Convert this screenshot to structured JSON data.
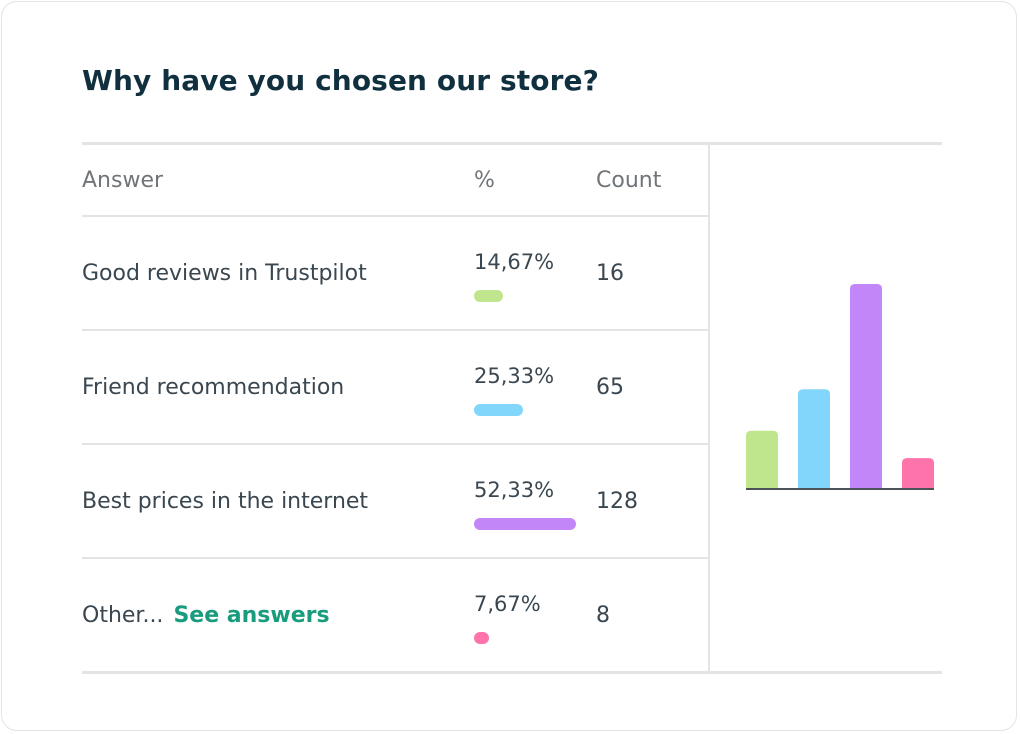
{
  "survey": {
    "title": "Why have you chosen our store?",
    "headers": {
      "answer": "Answer",
      "percent": "%",
      "count": "Count"
    },
    "rows": [
      {
        "answer": "Good reviews in Trustpilot",
        "percent_label": "14,67%",
        "percent": 14.67,
        "count": "16",
        "color": "#bfe68c"
      },
      {
        "answer": "Friend recommendation",
        "percent_label": "25,33%",
        "percent": 25.33,
        "count": "65",
        "color": "#83d6fb"
      },
      {
        "answer": "Best prices in the internet",
        "percent_label": "52,33%",
        "percent": 52.33,
        "count": "128",
        "color": "#c386f9"
      },
      {
        "answer": "Other...",
        "link": "See answers",
        "percent_label": "7,67%",
        "percent": 7.67,
        "count": "8",
        "color": "#fe73aa"
      }
    ]
  },
  "chart_data": {
    "type": "bar",
    "categories": [
      "Good reviews in Trustpilot",
      "Friend recommendation",
      "Best prices in the internet",
      "Other..."
    ],
    "values": [
      14.67,
      25.33,
      52.33,
      7.67
    ],
    "colors": [
      "#bfe68c",
      "#83d6fb",
      "#c386f9",
      "#fe73aa"
    ],
    "ylim": [
      0,
      52.33
    ],
    "grid": false
  }
}
